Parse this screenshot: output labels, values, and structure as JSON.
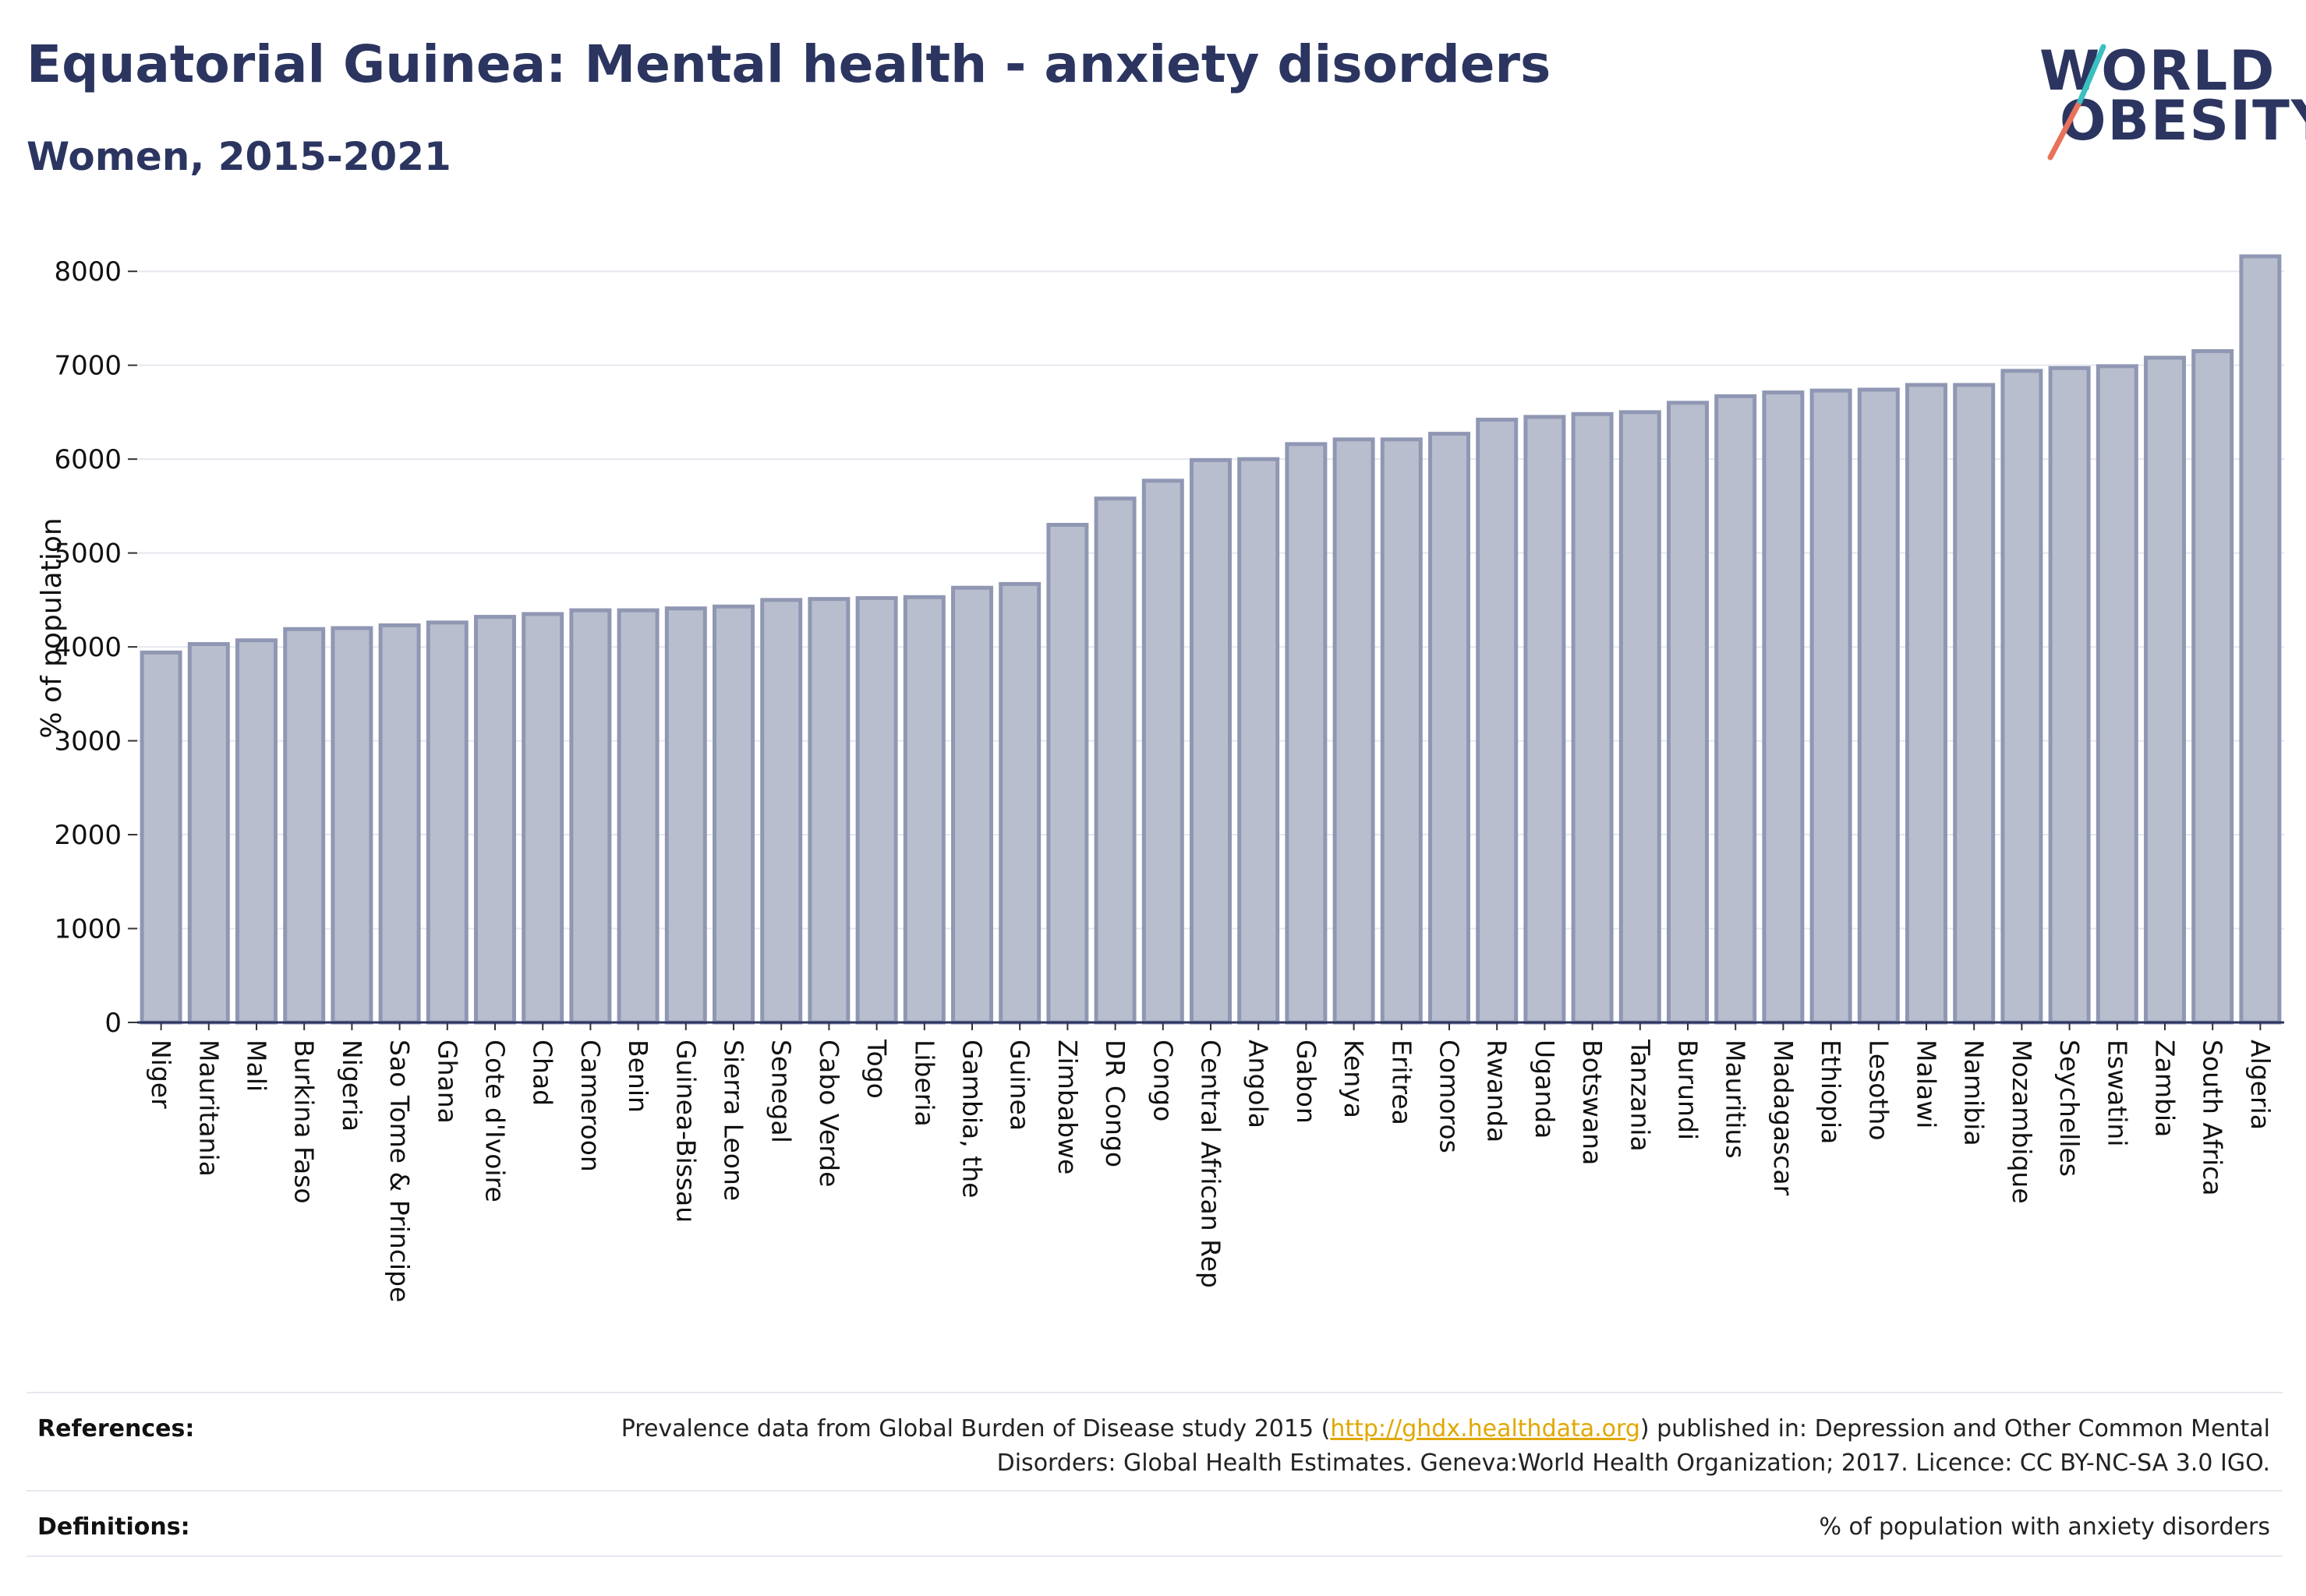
{
  "header": {
    "title": "Equatorial Guinea: Mental health - anxiety disorders",
    "subtitle": "Women, 2015-2021"
  },
  "logo": {
    "line1": "WORLD",
    "line2": "OBESITY"
  },
  "colors": {
    "bar_fill": "#b9bece",
    "bar_stroke": "#9097b3",
    "title": "#2b3560",
    "grid": "#e6e8ef",
    "link": "#e0a800"
  },
  "footer": {
    "references_label": "References:",
    "references_text_before": "Prevalence data from Global Burden of Disease study 2015 (",
    "references_link": "http://ghdx.healthdata.org",
    "references_text_after": ") published in: Depression and Other Common Mental Disorders: Global Health Estimates. Geneva:World Health Organization; 2017. Licence: CC BY-NC-SA 3.0 IGO.",
    "definitions_label": "Definitions:",
    "definitions_text": "% of population with anxiety disorders"
  },
  "chart_data": {
    "type": "bar",
    "ylabel": "% of population",
    "ylim": [
      0,
      8400
    ],
    "yticks": [
      0,
      1000,
      2000,
      3000,
      4000,
      5000,
      6000,
      7000,
      8000
    ],
    "grid": true,
    "categories": [
      "Niger",
      "Mauritania",
      "Mali",
      "Burkina Faso",
      "Nigeria",
      "Sao Tome & Principe",
      "Ghana",
      "Cote d'Ivoire",
      "Chad",
      "Cameroon",
      "Benin",
      "Guinea-Bissau",
      "Sierra Leone",
      "Senegal",
      "Cabo Verde",
      "Togo",
      "Liberia",
      "Gambia, the",
      "Guinea",
      "Zimbabwe",
      "DR Congo",
      "Congo",
      "Central African Rep",
      "Angola",
      "Gabon",
      "Kenya",
      "Eritrea",
      "Comoros",
      "Rwanda",
      "Uganda",
      "Botswana",
      "Tanzania",
      "Burundi",
      "Mauritius",
      "Madagascar",
      "Ethiopia",
      "Lesotho",
      "Malawi",
      "Namibia",
      "Mozambique",
      "Seychelles",
      "Eswatini",
      "Zambia",
      "South Africa",
      "Algeria"
    ],
    "values": [
      3940,
      4030,
      4070,
      4190,
      4200,
      4230,
      4260,
      4320,
      4350,
      4390,
      4390,
      4410,
      4430,
      4500,
      4510,
      4520,
      4530,
      4630,
      4670,
      5300,
      5580,
      5770,
      5990,
      6000,
      6160,
      6210,
      6210,
      6270,
      6420,
      6450,
      6480,
      6500,
      6600,
      6670,
      6710,
      6730,
      6740,
      6790,
      6790,
      6940,
      6970,
      6990,
      7080,
      7150,
      8160
    ]
  }
}
